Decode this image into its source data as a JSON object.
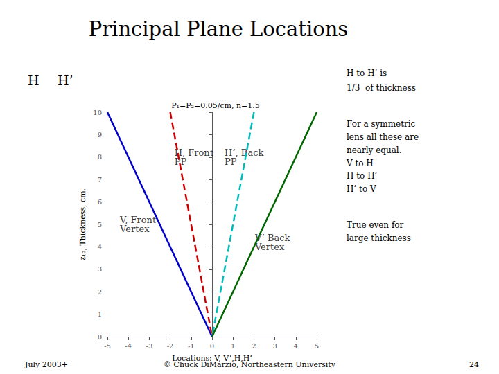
{
  "chart_data": {
    "type": "line",
    "title": "Principal Plane Locations",
    "subtitle": "P₁=P₂=0.05/cm, n=1.5",
    "xlabel": "Locations: V, V’,H,H’",
    "ylabel": "z₁₂, Thickness, cm.",
    "xlim": [
      -5,
      5
    ],
    "ylim": [
      0,
      10
    ],
    "xticks": [
      -5,
      -4,
      -3,
      -2,
      -1,
      0,
      1,
      2,
      3,
      4,
      5
    ],
    "yticks": [
      0,
      1,
      2,
      3,
      4,
      5,
      6,
      7,
      8,
      9,
      10
    ],
    "grid": false,
    "series": [
      {
        "x": [
          -5,
          0
        ],
        "values": [
          10,
          0
        ],
        "color": "#0000cc",
        "line_style": "solid"
      },
      {
        "x": [
          -2,
          0
        ],
        "values": [
          10,
          0
        ],
        "color": "#cc0000",
        "line_style": "dashed"
      },
      {
        "x": [
          2,
          0
        ],
        "values": [
          10,
          0
        ],
        "color": "#00bbbb",
        "line_style": "dashed"
      },
      {
        "x": [
          5,
          0
        ],
        "values": [
          10,
          0
        ],
        "color": "#006600",
        "line_style": "solid"
      }
    ],
    "annotations": [
      {
        "text": "H, Front\nPP",
        "x": -1.8,
        "y": 8.0
      },
      {
        "text": "H’, Back\nPP",
        "x": 0.6,
        "y": 8.0
      },
      {
        "text": "V, Front\nVertex",
        "x": -4.4,
        "y": 5.0
      },
      {
        "text": "V’ Back\nVertex",
        "x": 2.05,
        "y": 4.2
      }
    ],
    "side_labels": [
      "H",
      "H’"
    ],
    "notes": [
      "H to H’ is",
      "1/3  of thickness",
      "For a symmetric",
      "lens all these are",
      "nearly equal.",
      "V to H",
      "H to H’",
      "H’ to V",
      "True even for",
      "large thickness"
    ],
    "footer": [
      "July 2003+",
      "© Chuck DiMarzio, Northeastern University",
      "24"
    ]
  }
}
